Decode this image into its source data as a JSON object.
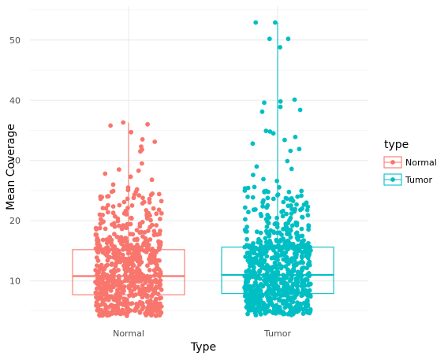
{
  "chart_data": {
    "type": "boxplot",
    "title": "",
    "xlabel": "Type",
    "ylabel": "Mean Coverage",
    "categories": [
      "Normal",
      "Tumor"
    ],
    "ylim": [
      3.8,
      55.6
    ],
    "yticks": [
      10,
      20,
      30,
      40,
      50
    ],
    "grid": true,
    "legend": {
      "title": "type",
      "position": "right",
      "entries": [
        "Normal",
        "Tumor"
      ]
    },
    "colors": {
      "Normal": "#F8766D",
      "Tumor": "#00BFC4"
    },
    "series": [
      {
        "name": "Normal",
        "box": {
          "q1": 7.7,
          "median": 10.8,
          "q3": 15.2,
          "whisker_low": 4.2,
          "whisker_high": 36.3
        },
        "outliers": [
          36.3,
          36.0,
          35.8,
          34.7,
          33.5,
          33.1,
          32.3,
          31.8,
          31.5,
          29.5,
          28.5,
          28.3,
          27.8,
          27.3,
          26.8,
          26.0,
          25.5,
          25.2,
          24.8,
          24.5,
          24.2,
          23.8
        ],
        "n_points": 700
      },
      {
        "name": "Tumor",
        "box": {
          "q1": 7.9,
          "median": 11.0,
          "q3": 15.6,
          "whisker_low": 4.3,
          "whisker_high": 52.9
        },
        "outliers": [
          52.9,
          52.9,
          50.2,
          50.2,
          48.8,
          40.1,
          39.8,
          39.6,
          38.9,
          38.4,
          38.1,
          34.9,
          34.8,
          34.5,
          33.9,
          33.4,
          32.8,
          31.9,
          31.6,
          29.9,
          29.0,
          28.6,
          27.6,
          26.9,
          26.6
        ],
        "n_points": 760
      }
    ]
  }
}
